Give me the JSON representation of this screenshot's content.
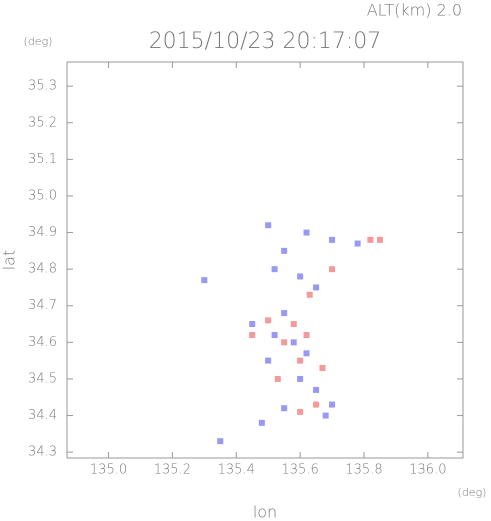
{
  "chart_data": {
    "type": "scatter",
    "title": "2015/10/23 20:17:07",
    "subtitle": "ALT(km)  2.0",
    "x_unit": "(deg)",
    "y_unit": "(deg)",
    "x_label": "lon",
    "y_label": "lat",
    "xlim": [
      134.87,
      136.11
    ],
    "ylim": [
      34.284,
      35.366
    ],
    "xticks": [
      {
        "value": 135.0,
        "label": "135.0"
      },
      135.2,
      135.4,
      135.6,
      135.8,
      {
        "value": 136.0,
        "label": "136.0"
      }
    ],
    "yticks": [
      34.3,
      34.4,
      34.5,
      34.6,
      34.7,
      34.8,
      34.9,
      {
        "value": 35.0,
        "label": "35.0"
      },
      35.1,
      35.2,
      35.3
    ],
    "series": [
      {
        "color": "#8080f0",
        "x": [
          135.5,
          135.55,
          135.62,
          135.7,
          135.78,
          135.6,
          135.52,
          135.65,
          135.45,
          135.52,
          135.58,
          135.62,
          135.5,
          135.6,
          135.65,
          135.7,
          135.55,
          135.48,
          135.35,
          135.68,
          135.3,
          135.55
        ],
        "y": [
          34.92,
          34.85,
          34.9,
          34.88,
          34.87,
          34.78,
          34.8,
          34.75,
          34.65,
          34.62,
          34.6,
          34.57,
          34.55,
          34.5,
          34.47,
          34.43,
          34.42,
          34.38,
          34.33,
          34.4,
          34.77,
          34.68
        ]
      },
      {
        "color": "#f08080",
        "x": [
          135.82,
          135.85,
          135.7,
          135.63,
          135.5,
          135.58,
          135.55,
          135.62,
          135.6,
          135.67,
          135.65,
          135.6,
          135.45,
          135.53
        ],
        "y": [
          34.88,
          34.88,
          34.8,
          34.73,
          34.66,
          34.65,
          34.6,
          34.62,
          34.55,
          34.53,
          34.43,
          34.41,
          34.62,
          34.5
        ]
      }
    ]
  }
}
